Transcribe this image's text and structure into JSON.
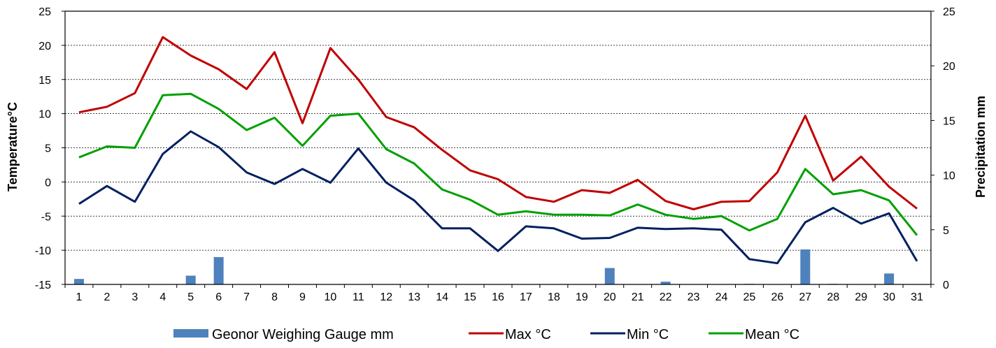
{
  "chart_data": {
    "type": "line",
    "categories": [
      "1",
      "2",
      "3",
      "4",
      "5",
      "6",
      "7",
      "8",
      "9",
      "10",
      "11",
      "12",
      "13",
      "14",
      "15",
      "16",
      "17",
      "18",
      "19",
      "20",
      "21",
      "22",
      "23",
      "24",
      "25",
      "26",
      "27",
      "28",
      "29",
      "30",
      "31"
    ],
    "ylabel": "Temperature°C",
    "y2label": "Precipitation mm",
    "ylim": [
      -15,
      25
    ],
    "y2lim": [
      0,
      25
    ],
    "yticks": [
      "25",
      "20",
      "15",
      "10",
      "5",
      "0",
      "-5",
      "-10",
      "-15"
    ],
    "y2ticks": [
      "25",
      "20",
      "15",
      "10",
      "5",
      "0"
    ],
    "grid": true,
    "legend_position": "bottom",
    "series": [
      {
        "name": "Geonor Weighing Gauge mm",
        "type": "bar",
        "axis": "right",
        "color": "#4f81bd",
        "values": [
          0.5,
          0,
          0,
          0,
          0.8,
          2.5,
          0,
          0,
          0,
          0,
          0,
          0,
          0,
          0,
          0,
          0,
          0,
          0,
          0,
          1.5,
          0,
          0.25,
          0,
          0,
          0.05,
          0,
          3.2,
          0.05,
          0,
          1.0,
          0
        ]
      },
      {
        "name": "Max °C",
        "type": "line",
        "axis": "left",
        "color": "#c00000",
        "values": [
          10.2,
          11,
          13,
          21.2,
          18.5,
          16.5,
          13.6,
          19,
          8.6,
          19.6,
          15,
          9.5,
          8,
          4.7,
          1.7,
          0.4,
          -2.2,
          -2.9,
          -1.2,
          -1.6,
          0.3,
          -2.8,
          -4,
          -2.9,
          -2.8,
          1.4,
          9.7,
          0.2,
          3.7,
          -0.7,
          -3.9
        ]
      },
      {
        "name": "Min °C",
        "type": "line",
        "axis": "left",
        "color": "#002060",
        "values": [
          -3.2,
          -0.6,
          -2.9,
          4.1,
          7.4,
          5.1,
          1.4,
          -0.3,
          1.9,
          -0.1,
          4.9,
          -0.1,
          -2.7,
          -6.8,
          -6.8,
          -10.1,
          -6.5,
          -6.8,
          -8.3,
          -8.2,
          -6.7,
          -6.9,
          -6.8,
          -7,
          -11.3,
          -11.9,
          -5.9,
          -3.8,
          -6.1,
          -4.6,
          -11.6
        ]
      },
      {
        "name": "Mean °C",
        "type": "line",
        "axis": "left",
        "color": "#00a000",
        "values": [
          3.6,
          5.2,
          5,
          12.7,
          12.9,
          10.7,
          7.6,
          9.4,
          5.3,
          9.7,
          10,
          4.8,
          2.7,
          -1.1,
          -2.6,
          -4.8,
          -4.3,
          -4.8,
          -4.8,
          -4.9,
          -3.3,
          -4.8,
          -5.4,
          -5,
          -7.1,
          -5.4,
          1.9,
          -1.8,
          -1.2,
          -2.7,
          -7.8
        ]
      }
    ]
  }
}
